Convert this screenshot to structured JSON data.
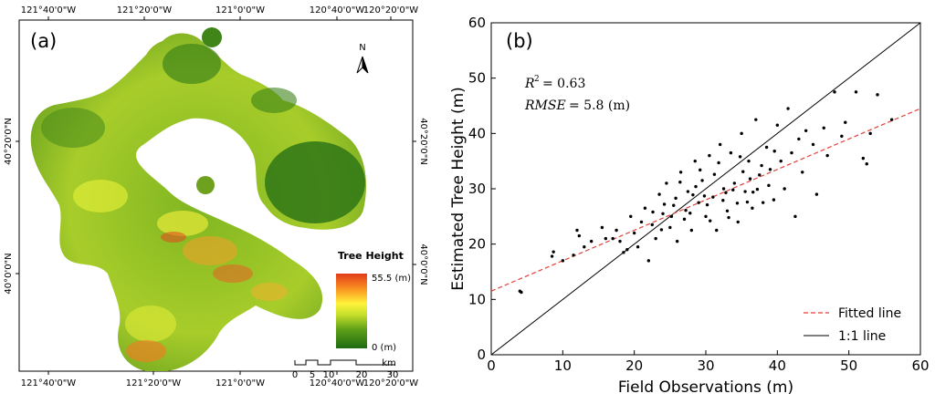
{
  "chart_data": [
    {
      "type": "map",
      "panel_label": "(a)",
      "top_ticks": [
        "121°40'0\"W",
        "121°20'0\"W",
        "121°0'0\"W",
        "120°40'0\"W",
        "120°20'0\"W"
      ],
      "bottom_ticks": [
        "121°40'0\"W",
        "121°20'0\"W",
        "121°0'0\"W",
        "120°40'0\"W",
        "120°20'0\"W"
      ],
      "left_ticks": [
        "40°20'0\"N",
        "40°0'0\"N"
      ],
      "right_ticks": [
        "40°20'0\"N",
        "40°0'0\"N"
      ],
      "north_label": "N",
      "legend": {
        "title": "Tree Height",
        "max_label": "55.5 (m)",
        "min_label": "0 (m)",
        "colors": [
          "#1e6b12",
          "#5e9f18",
          "#c6e02c",
          "#fff23a",
          "#f99120",
          "#e23a1a"
        ]
      },
      "scalebar": {
        "ticks": [
          "0",
          "5",
          "10",
          "20",
          "30"
        ],
        "unit": "km"
      }
    },
    {
      "type": "scatter",
      "panel_label": "(b)",
      "xlabel": "Field Observations (m)",
      "ylabel": "Estimated Tree Height (m)",
      "xlim": [
        0,
        60
      ],
      "ylim": [
        0,
        60
      ],
      "xticks": [
        0,
        10,
        20,
        30,
        40,
        50,
        60
      ],
      "yticks": [
        0,
        10,
        20,
        30,
        40,
        50,
        60
      ],
      "annotations": {
        "r2_label": "R",
        "r2_value": "= 0.63",
        "rmse_label": "RMSE",
        "rmse_value": "= 5.8 (m)"
      },
      "fitted_line": {
        "name": "Fitted line",
        "intercept": 11.5,
        "slope": 0.55,
        "color": "#e0413a"
      },
      "identity_line": {
        "name": "1:1 line",
        "color": "#000000"
      },
      "legend_position": "bottom-right",
      "grid": false,
      "points": [
        [
          4.0,
          11.5
        ],
        [
          4.2,
          11.3
        ],
        [
          8.5,
          17.8
        ],
        [
          8.7,
          18.6
        ],
        [
          10.0,
          17.0
        ],
        [
          11.5,
          18.0
        ],
        [
          12.0,
          22.5
        ],
        [
          12.3,
          21.5
        ],
        [
          13.0,
          19.5
        ],
        [
          14.0,
          20.5
        ],
        [
          15.5,
          23.0
        ],
        [
          16.0,
          21.0
        ],
        [
          17.0,
          21.0
        ],
        [
          17.5,
          22.5
        ],
        [
          18.0,
          20.5
        ],
        [
          18.5,
          18.5
        ],
        [
          19.0,
          19.0
        ],
        [
          19.5,
          25.0
        ],
        [
          20.0,
          22.0
        ],
        [
          20.5,
          19.5
        ],
        [
          21.0,
          24.0
        ],
        [
          21.5,
          26.5
        ],
        [
          22.0,
          17.0
        ],
        [
          22.5,
          23.5
        ],
        [
          23.0,
          21.0
        ],
        [
          23.5,
          29.0
        ],
        [
          24.0,
          25.5
        ],
        [
          24.5,
          31.0
        ],
        [
          25.0,
          23.0
        ],
        [
          25.5,
          27.0
        ],
        [
          26.0,
          20.5
        ],
        [
          26.5,
          33.0
        ],
        [
          27.0,
          24.5
        ],
        [
          27.5,
          29.5
        ],
        [
          28.0,
          22.5
        ],
        [
          28.5,
          35.0
        ],
        [
          29.0,
          27.5
        ],
        [
          29.5,
          31.5
        ],
        [
          30.0,
          25.0
        ],
        [
          30.5,
          36.0
        ],
        [
          31.0,
          28.5
        ],
        [
          31.5,
          22.5
        ],
        [
          32.0,
          38.0
        ],
        [
          32.5,
          30.0
        ],
        [
          33.0,
          26.0
        ],
        [
          33.5,
          36.5
        ],
        [
          34.0,
          31.0
        ],
        [
          34.5,
          24.0
        ],
        [
          35.0,
          40.0
        ],
        [
          35.5,
          29.5
        ],
        [
          36.0,
          35.0
        ],
        [
          36.5,
          26.5
        ],
        [
          37.0,
          42.5
        ],
        [
          37.5,
          32.5
        ],
        [
          38.0,
          27.5
        ],
        [
          38.5,
          37.5
        ],
        [
          39.0,
          33.5
        ],
        [
          39.5,
          28.0
        ],
        [
          40.0,
          41.5
        ],
        [
          40.5,
          35.0
        ],
        [
          41.0,
          30.0
        ],
        [
          41.5,
          44.5
        ],
        [
          42.0,
          36.5
        ],
        [
          42.5,
          25.0
        ],
        [
          43.0,
          39.0
        ],
        [
          43.5,
          33.0
        ],
        [
          44.0,
          40.5
        ],
        [
          45.0,
          38.0
        ],
        [
          45.5,
          29.0
        ],
        [
          46.5,
          41.0
        ],
        [
          47.0,
          36.0
        ],
        [
          48.0,
          47.5
        ],
        [
          49.0,
          39.5
        ],
        [
          49.5,
          42.0
        ],
        [
          51.0,
          47.5
        ],
        [
          52.0,
          35.5
        ],
        [
          52.5,
          34.5
        ],
        [
          53.0,
          40.0
        ],
        [
          54.0,
          47.0
        ],
        [
          56.0,
          42.5
        ],
        [
          24.2,
          27.2
        ],
        [
          25.8,
          28.3
        ],
        [
          27.2,
          26.1
        ],
        [
          28.6,
          30.4
        ],
        [
          29.8,
          28.7
        ],
        [
          31.2,
          32.6
        ],
        [
          32.4,
          27.9
        ],
        [
          33.8,
          29.8
        ],
        [
          35.2,
          33.1
        ],
        [
          36.6,
          29.4
        ],
        [
          34.4,
          27.4
        ],
        [
          30.6,
          24.2
        ],
        [
          27.8,
          25.6
        ],
        [
          26.4,
          31.2
        ],
        [
          29.2,
          33.4
        ],
        [
          31.8,
          34.7
        ],
        [
          33.2,
          24.8
        ],
        [
          36.2,
          31.8
        ],
        [
          37.8,
          34.2
        ],
        [
          38.8,
          30.6
        ],
        [
          22.6,
          25.8
        ],
        [
          23.8,
          22.6
        ],
        [
          25.2,
          25.0
        ],
        [
          28.2,
          28.9
        ],
        [
          30.2,
          27.1
        ],
        [
          32.8,
          29.3
        ],
        [
          34.8,
          35.8
        ],
        [
          35.8,
          27.6
        ],
        [
          37.2,
          29.9
        ],
        [
          39.6,
          36.8
        ]
      ]
    }
  ]
}
